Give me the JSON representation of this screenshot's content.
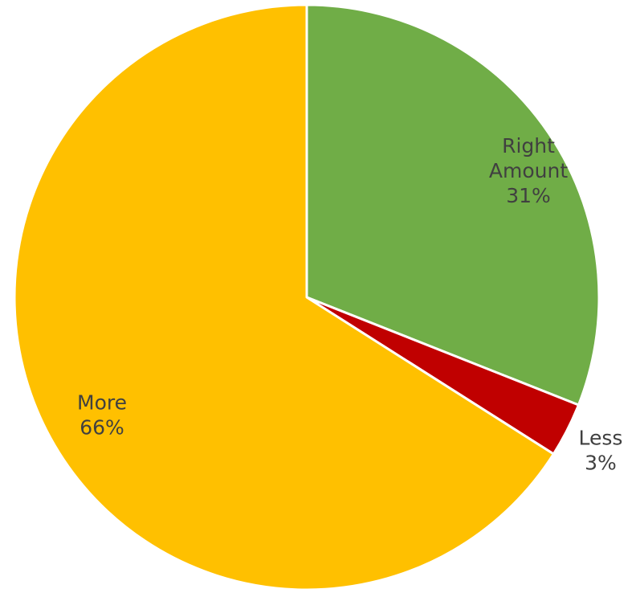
{
  "chart_data": {
    "type": "pie",
    "title": "",
    "slices": [
      {
        "name": "Right Amount",
        "label_lines": [
          "Right",
          "Amount"
        ],
        "percent_label": "31%",
        "value": 31,
        "color": "#70AD47"
      },
      {
        "name": "Less",
        "label_lines": [
          "Less"
        ],
        "percent_label": "3%",
        "value": 3,
        "color": "#C00000"
      },
      {
        "name": "More",
        "label_lines": [
          "More"
        ],
        "percent_label": "66%",
        "value": 66,
        "color": "#FFC000"
      }
    ],
    "start_angle_deg": 0,
    "direction": "clockwise",
    "legend": "none",
    "slice_border_color": "#ffffff",
    "label_color": "#404040"
  }
}
